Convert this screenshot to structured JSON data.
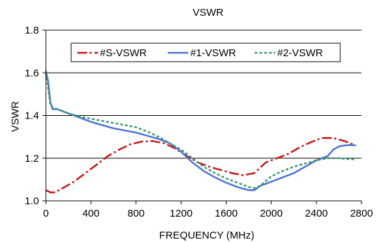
{
  "chart_data": {
    "type": "line",
    "title": "VSWR",
    "xlabel": "FREQUENCY (MHz)",
    "ylabel": "VSWR",
    "xlim": [
      0,
      2800
    ],
    "ylim": [
      1.0,
      1.8
    ],
    "xticks": [
      0,
      400,
      800,
      1200,
      1600,
      2000,
      2400,
      2800
    ],
    "yticks": [
      1.0,
      1.2,
      1.4,
      1.6,
      1.8
    ],
    "ytick_labels": [
      "1.0",
      "1.2",
      "1.4",
      "1.6",
      "1.8"
    ],
    "grid": "horizontal",
    "legend_position": "top",
    "series": [
      {
        "name": "#S-VSWR",
        "color": "#cc1111",
        "style": "dashdot",
        "x": [
          0,
          40,
          80,
          150,
          250,
          350,
          450,
          550,
          650,
          750,
          850,
          950,
          1050,
          1150,
          1250,
          1350,
          1450,
          1550,
          1650,
          1750,
          1850,
          1950,
          2050,
          2150,
          2250,
          2350,
          2450,
          2550,
          2650,
          2750
        ],
        "y": [
          1.05,
          1.04,
          1.04,
          1.06,
          1.09,
          1.13,
          1.17,
          1.21,
          1.24,
          1.265,
          1.278,
          1.28,
          1.27,
          1.245,
          1.21,
          1.18,
          1.16,
          1.145,
          1.13,
          1.12,
          1.13,
          1.18,
          1.2,
          1.22,
          1.25,
          1.275,
          1.295,
          1.295,
          1.28,
          1.26
        ]
      },
      {
        "name": "#1-VSWR",
        "color": "#4a72d8",
        "style": "solid",
        "x": [
          0,
          20,
          40,
          60,
          100,
          200,
          300,
          400,
          500,
          600,
          700,
          800,
          900,
          1000,
          1100,
          1200,
          1300,
          1400,
          1500,
          1600,
          1700,
          1800,
          1850,
          1900,
          2000,
          2100,
          2200,
          2300,
          2400,
          2500,
          2550,
          2600,
          2650,
          2700,
          2750
        ],
        "y": [
          1.61,
          1.56,
          1.46,
          1.43,
          1.43,
          1.41,
          1.39,
          1.37,
          1.355,
          1.34,
          1.33,
          1.32,
          1.305,
          1.29,
          1.27,
          1.23,
          1.18,
          1.14,
          1.11,
          1.085,
          1.065,
          1.05,
          1.05,
          1.07,
          1.09,
          1.11,
          1.13,
          1.16,
          1.19,
          1.21,
          1.24,
          1.255,
          1.26,
          1.262,
          1.26
        ]
      },
      {
        "name": "#2-VSWR",
        "color": "#3a9a6a",
        "style": "dotted",
        "x": [
          0,
          20,
          40,
          60,
          100,
          200,
          300,
          400,
          500,
          600,
          700,
          800,
          900,
          1000,
          1100,
          1200,
          1300,
          1400,
          1500,
          1600,
          1700,
          1800,
          1850,
          1900,
          2000,
          2100,
          2200,
          2300,
          2400,
          2500,
          2600,
          2700,
          2750
        ],
        "y": [
          1.6,
          1.53,
          1.45,
          1.44,
          1.43,
          1.41,
          1.395,
          1.385,
          1.375,
          1.365,
          1.355,
          1.345,
          1.325,
          1.3,
          1.27,
          1.24,
          1.2,
          1.16,
          1.13,
          1.105,
          1.085,
          1.065,
          1.06,
          1.07,
          1.115,
          1.14,
          1.16,
          1.175,
          1.19,
          1.2,
          1.2,
          1.195,
          1.195
        ]
      }
    ]
  }
}
